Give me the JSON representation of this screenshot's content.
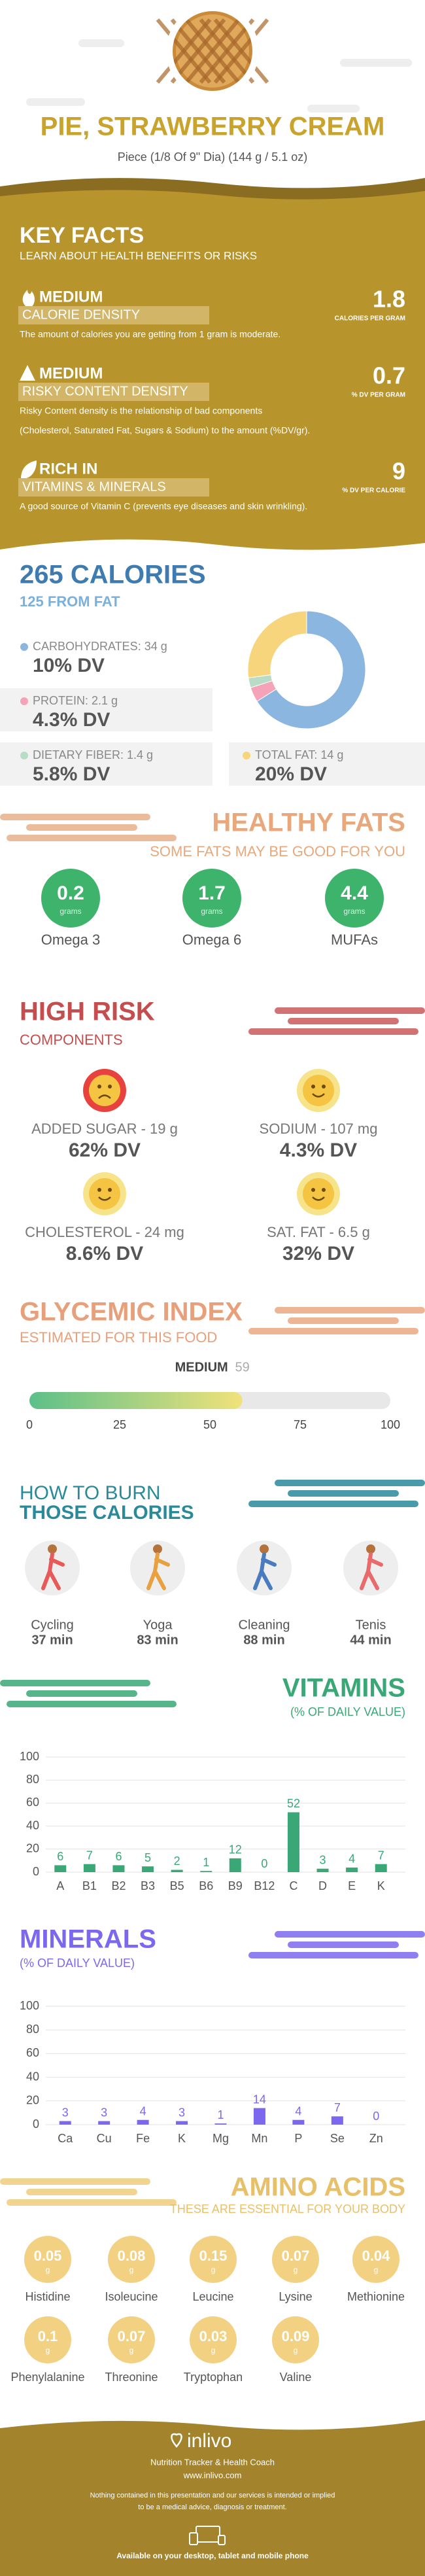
{
  "header": {
    "title": "PIE, STRAWBERRY CREAM",
    "subtitle": "Piece (1/8 Of 9\" Dia) (144 g / 5.1 oz)"
  },
  "key_facts": {
    "title": "KEY FACTS",
    "subtitle": "LEARN ABOUT HEALTH BENEFITS OR RISKS",
    "items": [
      {
        "level": "MEDIUM",
        "label": "CALORIE DENSITY",
        "value": 1.8,
        "unit": "CALORIES PER GRAM",
        "text": [
          "The amount of calories you are getting from 1 gram is moderate."
        ]
      },
      {
        "level": "MEDIUM",
        "label": "RISKY CONTENT DENSITY",
        "value": 0.7,
        "unit": "% DV PER GRAM",
        "text": [
          "Risky Content density is the relationship of bad components",
          "(Cholesterol, Saturated Fat, Sugars & Sodium) to the amount (%DV/gr)."
        ]
      },
      {
        "level": "RICH  IN",
        "label": "VITAMINS & MINERALS",
        "value": 9,
        "unit": "% DV PER CALORIE",
        "text": [
          "A good source of Vitamin C (prevents eye diseases and skin wrinkling)."
        ]
      }
    ]
  },
  "calories": {
    "title": "265 CALORIES",
    "subtitle": "125 FROM FAT",
    "nutrients": [
      {
        "name": "CARBOHYDRATES: 34 g",
        "dv": "10% DV",
        "grams": 34,
        "color": "#8ab6e0"
      },
      {
        "name": "PROTEIN: 2.1 g",
        "dv": "4.3% DV",
        "grams": 2.1,
        "color": "#f4a3b8"
      },
      {
        "name": "DIETARY FIBER: 1.4 g",
        "dv": "5.8% DV",
        "grams": 1.4,
        "color": "#b9dcc6"
      },
      {
        "name": "TOTAL FAT: 14 g",
        "dv": "20% DV",
        "grams": 14,
        "color": "#f6d57c"
      }
    ]
  },
  "healthy_fats": {
    "title": "HEALTHY FATS",
    "subtitle": "SOME FATS MAY BE GOOD FOR YOU",
    "items": [
      {
        "value": 0.2,
        "unit": "grams",
        "name": "Omega 3"
      },
      {
        "value": 1.7,
        "unit": "grams",
        "name": "Omega 6"
      },
      {
        "value": 4.4,
        "unit": "grams",
        "name": "MUFAs"
      }
    ]
  },
  "high_risk": {
    "title": "HIGH RISK",
    "subtitle": "COMPONENTS",
    "items": [
      {
        "label": "ADDED SUGAR - 19 g",
        "dv": "62% DV",
        "mood": "sad"
      },
      {
        "label": "SODIUM - 107 mg",
        "dv": "4.3% DV",
        "mood": "happy"
      },
      {
        "label": "CHOLESTEROL - 24 mg",
        "dv": "8.6% DV",
        "mood": "happy"
      },
      {
        "label": "SAT. FAT - 6.5 g",
        "dv": "32% DV",
        "mood": "happy"
      }
    ]
  },
  "glycemic": {
    "title": "GLYCEMIC INDEX",
    "subtitle": "ESTIMATED FOR THIS FOOD",
    "level": "MEDIUM",
    "value": 59,
    "xlim": [
      0,
      100
    ],
    "xticks": [
      0,
      25,
      50,
      75,
      100
    ]
  },
  "burn": {
    "title": [
      "HOW TO BURN",
      "THOSE CALORIES"
    ],
    "items": [
      {
        "name": "Cycling",
        "time": "37 min"
      },
      {
        "name": "Yoga",
        "time": "83 min"
      },
      {
        "name": "Cleaning",
        "time": "88 min"
      },
      {
        "name": "Tenis",
        "time": "44 min"
      }
    ]
  },
  "chart_data": [
    {
      "type": "bar",
      "title": "VITAMINS",
      "subtitle": "(% OF DAILY VALUE)",
      "categories": [
        "A",
        "B1",
        "B2",
        "B3",
        "B5",
        "B6",
        "B9",
        "B12",
        "C",
        "D",
        "E",
        "K"
      ],
      "values": [
        6,
        7,
        6,
        5,
        2,
        1,
        12,
        0,
        52,
        3,
        4,
        7
      ],
      "color": "#3aa876",
      "ylim": [
        0,
        100
      ],
      "yticks": [
        0,
        20,
        40,
        60,
        80,
        100
      ],
      "grid": true
    },
    {
      "type": "bar",
      "title": "MINERALS",
      "subtitle": "(% OF DAILY VALUE)",
      "categories": [
        "Ca",
        "Cu",
        "Fe",
        "K",
        "Mg",
        "Mn",
        "P",
        "Se",
        "Zn"
      ],
      "values": [
        3,
        3,
        4,
        3,
        1,
        14,
        4,
        7,
        0
      ],
      "color": "#7b68ee",
      "ylim": [
        0,
        100
      ],
      "yticks": [
        0,
        20,
        40,
        60,
        80,
        100
      ],
      "grid": true
    }
  ],
  "amino": {
    "title": "AMINO ACIDS",
    "subtitle": "THESE ARE ESSENTIAL FOR YOUR BODY",
    "unit": "g",
    "items": [
      {
        "name": "Histidine",
        "value": 0.05
      },
      {
        "name": "Isoleucine",
        "value": 0.08
      },
      {
        "name": "Leucine",
        "value": 0.15
      },
      {
        "name": "Lysine",
        "value": 0.07
      },
      {
        "name": "Methionine",
        "value": 0.04
      },
      {
        "name": "Phenylalanine",
        "value": 0.1
      },
      {
        "name": "Threonine",
        "value": 0.07
      },
      {
        "name": "Tryptophan",
        "value": 0.03
      },
      {
        "name": "Valine",
        "value": 0.09
      }
    ]
  },
  "footer": {
    "brand": "inlivo",
    "tagline": "Nutrition Tracker & Health Coach",
    "url": "www.inlivo.com",
    "disclaimer": [
      "Nothing contained in this presentation and our services is intended or implied",
      "to be a medical advice, diagnosis or treatment."
    ],
    "available": "Available on your desktop, tablet and mobile phone"
  }
}
